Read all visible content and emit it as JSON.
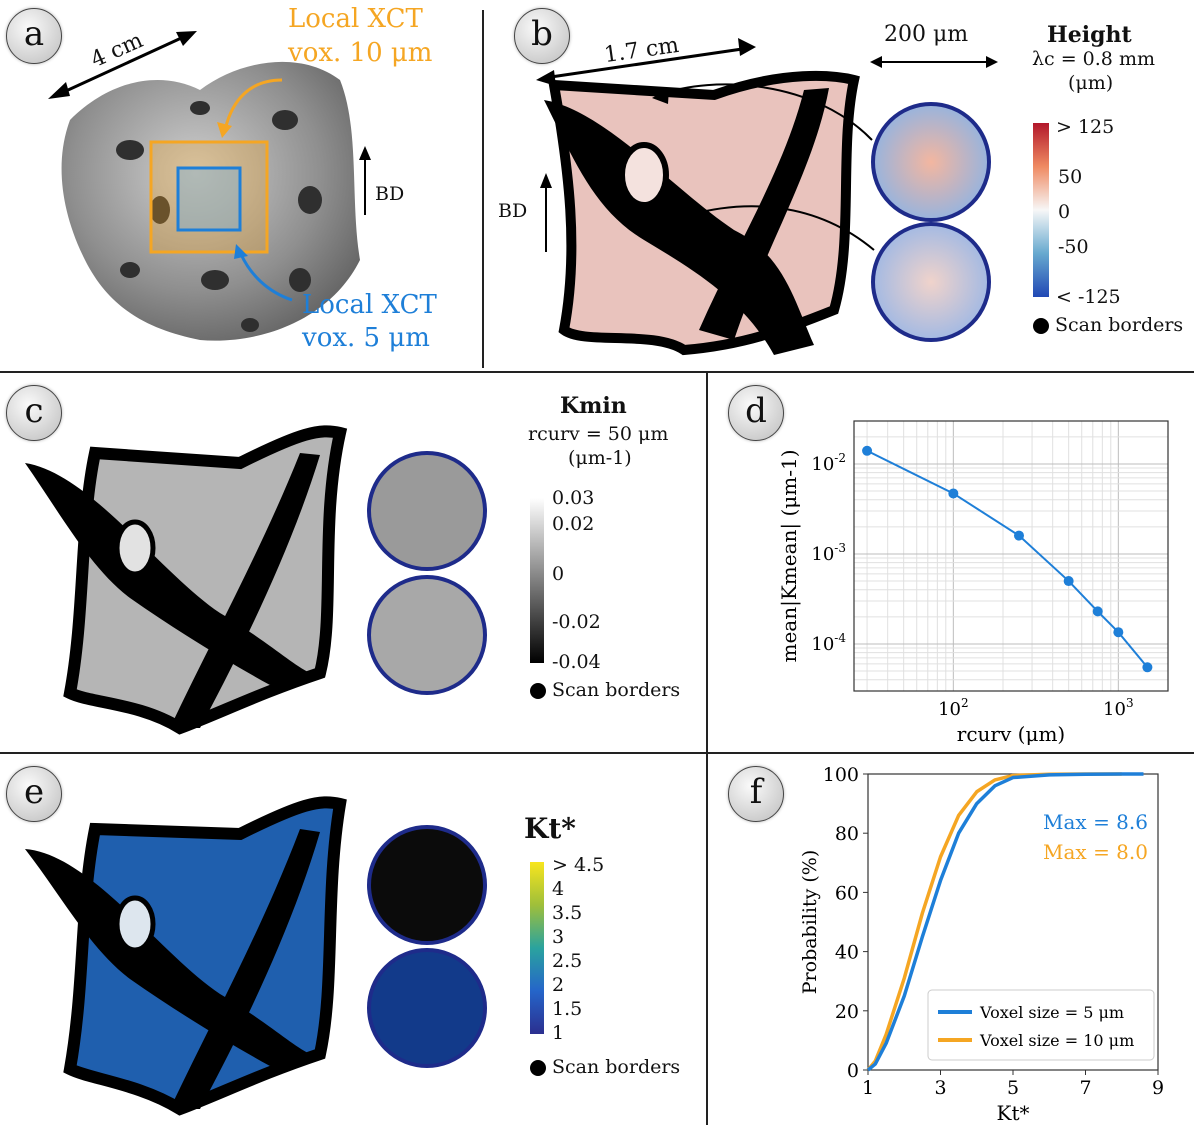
{
  "panels": {
    "a": {
      "label": "a",
      "size_label": "4 cm",
      "local10_line1": "Local XCT",
      "local10_line2": "vox. 10 μm",
      "local5_line1": "Local XCT",
      "local5_line2": "vox. 5 μm",
      "bd": "BD",
      "colors": {
        "orange": "#f5a623",
        "blue": "#1e7fd8"
      }
    },
    "b": {
      "label": "b",
      "size_label": "1.7 cm",
      "zoom_label": "200 μm",
      "bd": "BD",
      "legend_title": "Height",
      "legend_line2": "λc = 0.8 mm",
      "legend_line3": "(μm)",
      "ticks": [
        "> 125",
        "50",
        "0",
        "-50",
        "< -125"
      ],
      "scan_borders": "Scan borders"
    },
    "c": {
      "label": "c",
      "legend_title": "Kmin",
      "legend_line2": "rcurv = 50 μm",
      "legend_line3": "(μm-1)",
      "ticks": [
        "0.03",
        "0.02",
        "0",
        "-0.02",
        "-0.04"
      ],
      "scan_borders": "Scan borders"
    },
    "e": {
      "label": "e",
      "legend_title": "Kt*",
      "ticks": [
        "> 4.5",
        "4",
        "3.5",
        "3",
        "2.5",
        "2",
        "1.5",
        "1"
      ],
      "scan_borders": "Scan borders"
    },
    "d": {
      "label": "d"
    },
    "f": {
      "label": "f"
    }
  },
  "chart_data": [
    {
      "type": "line",
      "panel": "d",
      "xscale": "log",
      "yscale": "log",
      "xlabel": "rcurv (μm)",
      "ylabel": "mean|Kmean| (μm-1)",
      "xlim": [
        25,
        2000
      ],
      "ylim": [
        3e-05,
        0.03
      ],
      "x_ticks": [
        "10^2",
        "10^3"
      ],
      "y_ticks": [
        "10^-2",
        "10^-3",
        "10^-4"
      ],
      "grid": true,
      "color": "#1e7fd8",
      "x": [
        30,
        100,
        250,
        500,
        750,
        1000,
        1500
      ],
      "y": [
        0.014,
        0.0047,
        0.0016,
        0.0005,
        0.00023,
        0.000135,
        5.5e-05
      ]
    },
    {
      "type": "line",
      "panel": "f",
      "xlabel": "Kt*",
      "ylabel": "Probability (%)",
      "xlim": [
        1,
        9
      ],
      "ylim": [
        0,
        100
      ],
      "x_ticks": [
        1,
        3,
        5,
        7,
        9
      ],
      "y_ticks": [
        0,
        20,
        40,
        60,
        80,
        100
      ],
      "legend_position": "lower-right",
      "series": [
        {
          "name": "Voxel size = 5 μm",
          "color": "#1e7fd8",
          "max_label": "Max = 8.6",
          "max": 8.6,
          "x": [
            1,
            1.2,
            1.5,
            2,
            2.5,
            3,
            3.5,
            4,
            4.5,
            5,
            6,
            7,
            8,
            8.6
          ],
          "y": [
            0,
            2,
            9,
            25,
            45,
            64,
            80,
            90,
            96,
            98.8,
            99.7,
            99.9,
            100,
            100
          ]
        },
        {
          "name": "Voxel size = 10 μm",
          "color": "#f5a623",
          "max_label": "Max = 8.0",
          "max": 8.0,
          "x": [
            1,
            1.2,
            1.5,
            2,
            2.5,
            3,
            3.5,
            4,
            4.5,
            5,
            6,
            7,
            8
          ],
          "y": [
            0,
            3,
            12,
            31,
            53,
            72,
            86,
            94,
            98,
            99.5,
            99.9,
            100,
            100
          ]
        }
      ]
    }
  ]
}
